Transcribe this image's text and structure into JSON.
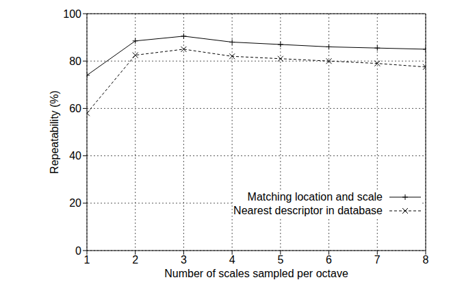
{
  "chart_data": {
    "type": "line",
    "x_label": "Number of scales sampled per octave",
    "y_label": "Repeatability (%)",
    "x": [
      1,
      2,
      3,
      4,
      5,
      6,
      7,
      8
    ],
    "series": [
      {
        "name": "Matching location and scale",
        "color": "#000000",
        "marker": "plus",
        "line_style": "solid",
        "values": [
          74,
          88.5,
          90.5,
          88,
          87,
          86,
          85.5,
          85
        ]
      },
      {
        "name": "Nearest descriptor in database",
        "color": "#000000",
        "marker": "x",
        "line_style": "dashed",
        "values": [
          58,
          82.5,
          85,
          82,
          81,
          80,
          79,
          77.5
        ]
      }
    ],
    "xlim": [
      1,
      8
    ],
    "xticks": [
      1,
      2,
      3,
      4,
      5,
      6,
      7,
      8
    ],
    "ylim": [
      0,
      100
    ],
    "yticks": [
      0,
      20,
      40,
      60,
      80,
      100
    ],
    "grid": true,
    "legend": "lower right"
  }
}
